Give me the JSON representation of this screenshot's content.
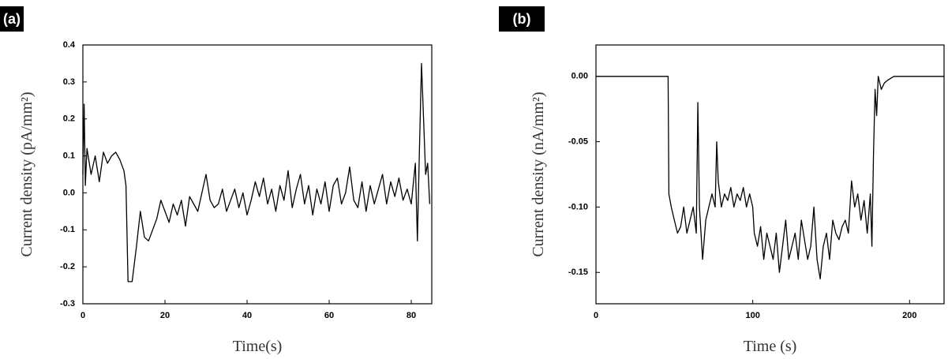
{
  "chart_data": [
    {
      "type": "line",
      "label": "(a)",
      "xlabel": "Time(s)",
      "ylabel": "Current density (pA/mm²)",
      "color": "#000000",
      "xlim": [
        0,
        85
      ],
      "xticks": [
        0,
        20,
        40,
        60,
        80
      ],
      "ylim": [
        -0.3,
        0.4
      ],
      "yticks": [
        -0.3,
        -0.2,
        -0.1,
        {
          "value": 0,
          "label": "0.0"
        },
        0.1,
        0.2,
        0.3,
        0.4
      ],
      "x": [
        0,
        0.3,
        0.6,
        1,
        2,
        3,
        4,
        5,
        6,
        7,
        8,
        9,
        10,
        10.5,
        11,
        12,
        13,
        14,
        15,
        16,
        17,
        18,
        19,
        20,
        21,
        22,
        23,
        24,
        25,
        26,
        27,
        28,
        29,
        30,
        31,
        32,
        33,
        34,
        35,
        36,
        37,
        38,
        39,
        40,
        41,
        42,
        43,
        44,
        45,
        46,
        47,
        48,
        49,
        50,
        51,
        52,
        53,
        54,
        55,
        56,
        57,
        58,
        59,
        60,
        61,
        62,
        63,
        64,
        65,
        66,
        67,
        68,
        69,
        70,
        71,
        72,
        73,
        74,
        75,
        76,
        77,
        78,
        79,
        80,
        81,
        81.5,
        82,
        82.5,
        83,
        83.5,
        84,
        84.5
      ],
      "values": [
        0.05,
        0.24,
        0.02,
        0.12,
        0.05,
        0.1,
        0.03,
        0.11,
        0.08,
        0.1,
        0.11,
        0.09,
        0.06,
        0.02,
        -0.24,
        -0.24,
        -0.15,
        -0.05,
        -0.12,
        -0.13,
        -0.1,
        -0.07,
        -0.02,
        -0.05,
        -0.08,
        -0.03,
        -0.06,
        -0.02,
        -0.09,
        -0.01,
        -0.03,
        -0.05,
        0.0,
        0.05,
        -0.02,
        -0.04,
        -0.03,
        0.01,
        -0.05,
        -0.02,
        0.01,
        -0.04,
        0.0,
        -0.06,
        -0.02,
        0.03,
        -0.01,
        0.04,
        -0.03,
        0.01,
        -0.05,
        0.02,
        -0.02,
        0.06,
        -0.04,
        0.01,
        0.05,
        -0.03,
        0.02,
        -0.06,
        0.01,
        -0.03,
        0.03,
        -0.05,
        0.02,
        0.04,
        -0.03,
        0.0,
        0.07,
        -0.02,
        -0.04,
        0.03,
        -0.05,
        0.02,
        -0.03,
        0.01,
        0.05,
        -0.03,
        0.03,
        -0.01,
        0.04,
        -0.02,
        0.01,
        -0.03,
        0.08,
        -0.13,
        0.12,
        0.35,
        0.2,
        0.05,
        0.08,
        -0.03
      ]
    },
    {
      "type": "line",
      "label": "(b)",
      "xlabel": "Time (s)",
      "ylabel": "Current density (nA/mm²)",
      "color": "#000000",
      "xlim": [
        0,
        222
      ],
      "xticks": [
        0,
        100,
        200
      ],
      "ylim": [
        -0.174,
        0.024
      ],
      "yticks": [
        {
          "value": -0.15,
          "label": "-0.15"
        },
        {
          "value": -0.1,
          "label": "-0.10"
        },
        {
          "value": -0.05,
          "label": "-0.05"
        },
        {
          "value": 0,
          "label": "0.00"
        }
      ],
      "x": [
        0,
        46,
        46.5,
        48,
        50,
        52,
        54,
        56,
        58,
        60,
        62,
        64,
        65,
        66,
        68,
        70,
        72,
        74,
        76,
        77,
        78,
        80,
        82,
        84,
        86,
        88,
        90,
        92,
        94,
        96,
        98,
        100,
        101,
        103,
        105,
        107,
        109,
        111,
        113,
        115,
        117,
        119,
        121,
        123,
        125,
        127,
        129,
        131,
        133,
        135,
        137,
        139,
        141,
        143,
        145,
        147,
        149,
        151,
        153,
        155,
        157,
        159,
        161,
        163,
        165,
        167,
        169,
        171,
        173,
        175,
        176,
        177,
        178,
        179,
        180,
        182,
        184,
        186,
        190,
        195,
        222
      ],
      "values": [
        0,
        0,
        -0.09,
        -0.1,
        -0.11,
        -0.12,
        -0.115,
        -0.1,
        -0.12,
        -0.11,
        -0.1,
        -0.12,
        -0.02,
        -0.1,
        -0.14,
        -0.11,
        -0.1,
        -0.09,
        -0.1,
        -0.05,
        -0.08,
        -0.1,
        -0.09,
        -0.095,
        -0.085,
        -0.1,
        -0.09,
        -0.095,
        -0.085,
        -0.1,
        -0.09,
        -0.1,
        -0.12,
        -0.13,
        -0.115,
        -0.14,
        -0.12,
        -0.13,
        -0.14,
        -0.12,
        -0.15,
        -0.13,
        -0.11,
        -0.14,
        -0.13,
        -0.12,
        -0.14,
        -0.11,
        -0.125,
        -0.14,
        -0.13,
        -0.1,
        -0.14,
        -0.155,
        -0.13,
        -0.12,
        -0.14,
        -0.11,
        -0.12,
        -0.125,
        -0.115,
        -0.11,
        -0.12,
        -0.08,
        -0.1,
        -0.09,
        -0.11,
        -0.095,
        -0.12,
        -0.09,
        -0.13,
        -0.06,
        -0.01,
        -0.03,
        0,
        -0.01,
        -0.005,
        -0.003,
        0,
        0,
        0
      ]
    }
  ]
}
